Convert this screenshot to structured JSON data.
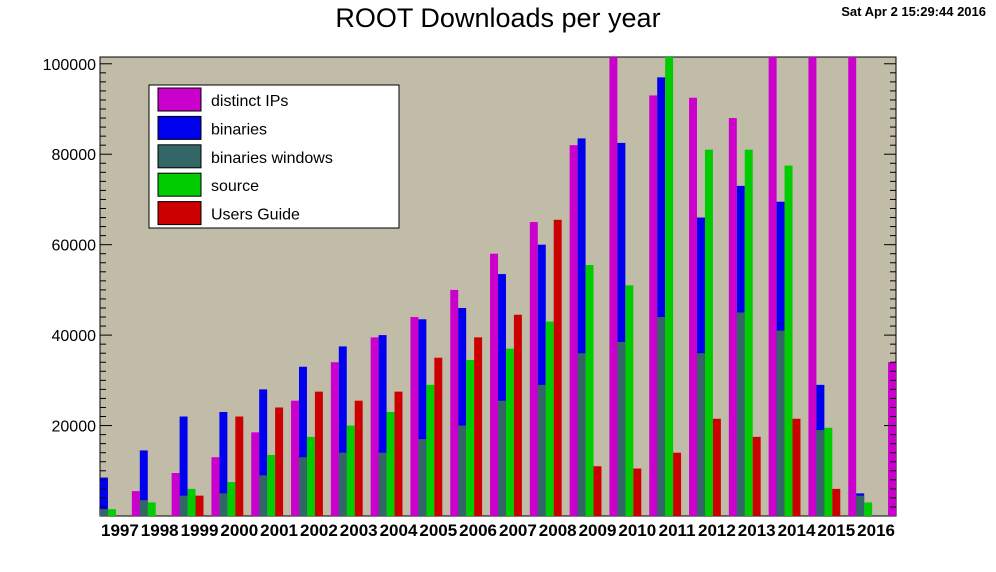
{
  "title": "ROOT Downloads per year",
  "timestamp": "Sat Apr  2 15:29:44 2016",
  "colors": {
    "background": "#c0bca8",
    "distinct_ips": "#cc00cc",
    "binaries": "#0000ee",
    "binaries_windows": "#336666",
    "source": "#00cc00",
    "users_guide": "#cc0000"
  },
  "chart_data": {
    "type": "bar",
    "title": "ROOT Downloads per year",
    "xlabel": "",
    "ylabel": "",
    "ylim": [
      0,
      101500
    ],
    "yticks": [
      20000,
      40000,
      60000,
      80000,
      100000
    ],
    "ytick_labels": [
      "20000",
      "40000",
      "60000",
      "80000",
      "100000"
    ],
    "grid": false,
    "legend_position": "top-left",
    "categories": [
      "1997",
      "1998",
      "1999",
      "2000",
      "2001",
      "2002",
      "2003",
      "2004",
      "2005",
      "2006",
      "2007",
      "2008",
      "2009",
      "2010",
      "2011",
      "2012",
      "2013",
      "2014",
      "2015",
      "2016"
    ],
    "series": [
      {
        "name": "distinct IPs",
        "color": "#cc00cc",
        "slot": 4,
        "values": [
          5500,
          9500,
          13000,
          18500,
          25500,
          34000,
          39500,
          44000,
          50000,
          58000,
          65000,
          82000,
          101500,
          93000,
          92500,
          88000,
          101500,
          101500,
          101500,
          34000
        ]
      },
      {
        "name": "binaries",
        "color": "#0000ee",
        "slot": 0,
        "values": [
          8500,
          14500,
          22000,
          23000,
          28000,
          33000,
          37500,
          40000,
          43500,
          46000,
          53500,
          60000,
          83500,
          82500,
          97000,
          66000,
          73000,
          69500,
          29000,
          5000
        ]
      },
      {
        "name": "binaries windows",
        "color": "#336666",
        "slot": 0,
        "values": [
          1500,
          3500,
          4500,
          5000,
          9000,
          13000,
          14000,
          14000,
          17000,
          20000,
          25500,
          29000,
          36000,
          38500,
          44000,
          36000,
          45000,
          41000,
          19000,
          4500
        ]
      },
      {
        "name": "source",
        "color": "#00cc00",
        "slot": 1,
        "values": [
          1500,
          3000,
          6000,
          7500,
          13500,
          17500,
          20000,
          23000,
          29000,
          34500,
          37000,
          43000,
          55500,
          51000,
          101500,
          81000,
          81000,
          77500,
          19500,
          3000
        ]
      },
      {
        "name": "Users Guide",
        "color": "#cc0000",
        "slot": 2,
        "values": [
          0,
          0,
          4500,
          22000,
          24000,
          27500,
          25500,
          27500,
          35000,
          39500,
          44500,
          65500,
          11000,
          10500,
          14000,
          21500,
          17500,
          21500,
          6000,
          0
        ]
      }
    ]
  }
}
